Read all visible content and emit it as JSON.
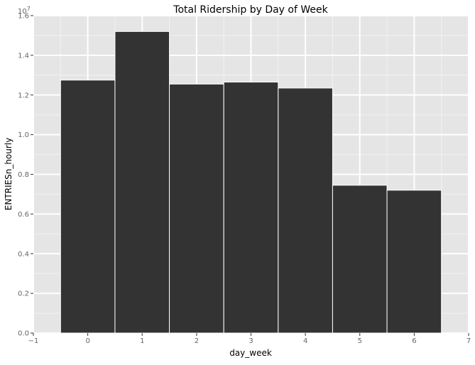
{
  "chart_data": {
    "type": "bar",
    "title": "Total Ridership by Day of Week",
    "xlabel": "day_week",
    "ylabel": "ENTRIESn_hourly",
    "y_multiplier_label": "1e7",
    "x": [
      0,
      1,
      2,
      3,
      4,
      5,
      6
    ],
    "values": [
      12750000,
      15200000,
      12550000,
      12650000,
      12350000,
      7450000,
      7200000
    ],
    "bar_width": 1,
    "xlim": [
      -1,
      7
    ],
    "ylim": [
      0,
      16000000
    ],
    "x_ticks": [
      -1,
      0,
      1,
      2,
      3,
      4,
      5,
      6,
      7
    ],
    "y_ticks": [
      0,
      2000000,
      4000000,
      6000000,
      8000000,
      10000000,
      12000000,
      14000000,
      16000000
    ],
    "y_tick_labels": [
      "0.0",
      "0.2",
      "0.4",
      "0.6",
      "0.8",
      "1.0",
      "1.2",
      "1.4",
      "1.6"
    ],
    "grid": true,
    "colors": {
      "bar": "#333333",
      "bar_edge": "#ffffff",
      "panel_background": "#e5e5e5",
      "grid_major": "#ffffff",
      "grid_minor": "#f2f2f2"
    }
  }
}
